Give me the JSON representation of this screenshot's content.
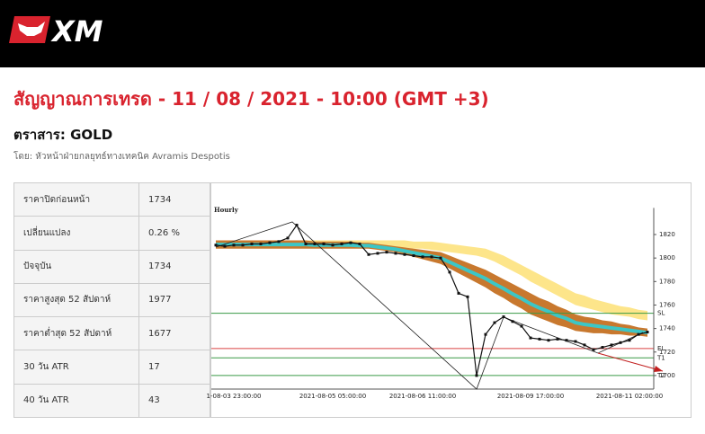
{
  "header": {
    "logo": "XM"
  },
  "title": "สัญญาณการเทรด - 11 / 08 / 2021 - 10:00 (GMT +3)",
  "instrument": "ตราสาร: GOLD",
  "author": "โดย: หัวหน้าฝ่ายกลยุทธ์ทางเทคนิค Avramis Despotis",
  "table": {
    "rows": [
      [
        "ราคาปิดก่อนหน้า",
        "1734"
      ],
      [
        "เปลี่ยนแปลง",
        "0.26 %"
      ],
      [
        "ปัจจุบัน",
        "1734"
      ],
      [
        "ราคาสูงสุด 52 สัปดาห์",
        "1977"
      ],
      [
        "ราคาต่ำสุด 52 สัปดาห์",
        "1677"
      ],
      [
        "30 วัน ATR",
        "17"
      ],
      [
        "40 วัน ATR",
        "43"
      ]
    ]
  },
  "chart": {
    "type": "line",
    "label": "Hourly",
    "categories": [
      null,
      null,
      "1-08-03 23:00:00",
      null,
      null,
      null,
      null,
      null,
      null,
      null,
      null,
      null,
      null,
      "2021-08-05 05:00:00",
      null,
      null,
      null,
      null,
      null,
      null,
      null,
      null,
      null,
      "2021-08-06 11:00:00",
      null,
      null,
      null,
      null,
      null,
      null,
      null,
      null,
      null,
      null,
      null,
      "2021-08-09 17:00:00",
      null,
      null,
      null,
      null,
      null,
      null,
      null,
      null,
      null,
      null,
      "2021-08-11 02:00:00",
      null,
      null
    ],
    "price": [
      1811,
      1810,
      1811,
      1811,
      1812,
      1812,
      1813,
      1814,
      1817,
      1828,
      1812,
      1812,
      1812,
      1811,
      1812,
      1813,
      1812,
      1803,
      1804,
      1805,
      1804,
      1803,
      1802,
      1801,
      1801,
      1800,
      1788,
      1770,
      1767,
      1700,
      1735,
      1745,
      1750,
      1746,
      1742,
      1732,
      1731,
      1730,
      1731,
      1730,
      1729,
      1726,
      1722,
      1724,
      1726,
      1728,
      1730,
      1735,
      1737
    ],
    "bands": [
      {
        "color": "#fde58a",
        "upper": [
          1815,
          1815,
          1815,
          1815,
          1815,
          1815,
          1815,
          1815,
          1815,
          1815,
          1815,
          1815,
          1815,
          1815,
          1815,
          1815,
          1815,
          1815,
          1815,
          1815,
          1815,
          1815,
          1814,
          1814,
          1814,
          1813,
          1812,
          1811,
          1810,
          1809,
          1808,
          1805,
          1802,
          1798,
          1794,
          1790,
          1786,
          1782,
          1778,
          1774,
          1770,
          1768,
          1765,
          1763,
          1761,
          1759,
          1758,
          1756,
          1755
        ],
        "lower": [
          1810,
          1810,
          1810,
          1810,
          1810,
          1810,
          1810,
          1810,
          1810,
          1810,
          1810,
          1810,
          1810,
          1810,
          1810,
          1810,
          1810,
          1810,
          1810,
          1810,
          1809,
          1809,
          1808,
          1808,
          1807,
          1806,
          1805,
          1804,
          1803,
          1802,
          1800,
          1797,
          1793,
          1789,
          1785,
          1780,
          1776,
          1772,
          1768,
          1764,
          1760,
          1758,
          1756,
          1754,
          1752,
          1751,
          1750,
          1748,
          1747
        ]
      },
      {
        "color": "#c8782e",
        "upper": [
          1815,
          1815,
          1815,
          1815,
          1815,
          1815,
          1815,
          1815,
          1815,
          1815,
          1815,
          1814,
          1814,
          1814,
          1814,
          1814,
          1813,
          1813,
          1812,
          1811,
          1810,
          1809,
          1808,
          1807,
          1806,
          1805,
          1802,
          1799,
          1796,
          1793,
          1790,
          1786,
          1782,
          1778,
          1774,
          1770,
          1766,
          1763,
          1759,
          1756,
          1752,
          1750,
          1749,
          1747,
          1746,
          1744,
          1743,
          1741,
          1740
        ],
        "lower": [
          1808,
          1808,
          1808,
          1808,
          1808,
          1808,
          1808,
          1808,
          1808,
          1808,
          1808,
          1808,
          1808,
          1808,
          1808,
          1808,
          1808,
          1808,
          1807,
          1806,
          1805,
          1803,
          1801,
          1799,
          1797,
          1795,
          1791,
          1787,
          1783,
          1779,
          1775,
          1770,
          1766,
          1761,
          1757,
          1752,
          1749,
          1746,
          1743,
          1741,
          1738,
          1737,
          1736,
          1736,
          1735,
          1735,
          1734,
          1734,
          1733
        ]
      }
    ],
    "levels": [
      {
        "name": "SL",
        "value": 1753,
        "color": "#3a9a46"
      },
      {
        "name": "EL",
        "value": 1723,
        "color": "#d94040"
      },
      {
        "name": "T1",
        "value": 1715,
        "color": "#3a9a46"
      },
      {
        "name": "T2",
        "value": 1700,
        "color": "#3a9a46"
      }
    ],
    "ylim": [
      1690,
      1835
    ],
    "yticks": [
      1700,
      1720,
      1740,
      1760,
      1780,
      1800,
      1820
    ]
  }
}
